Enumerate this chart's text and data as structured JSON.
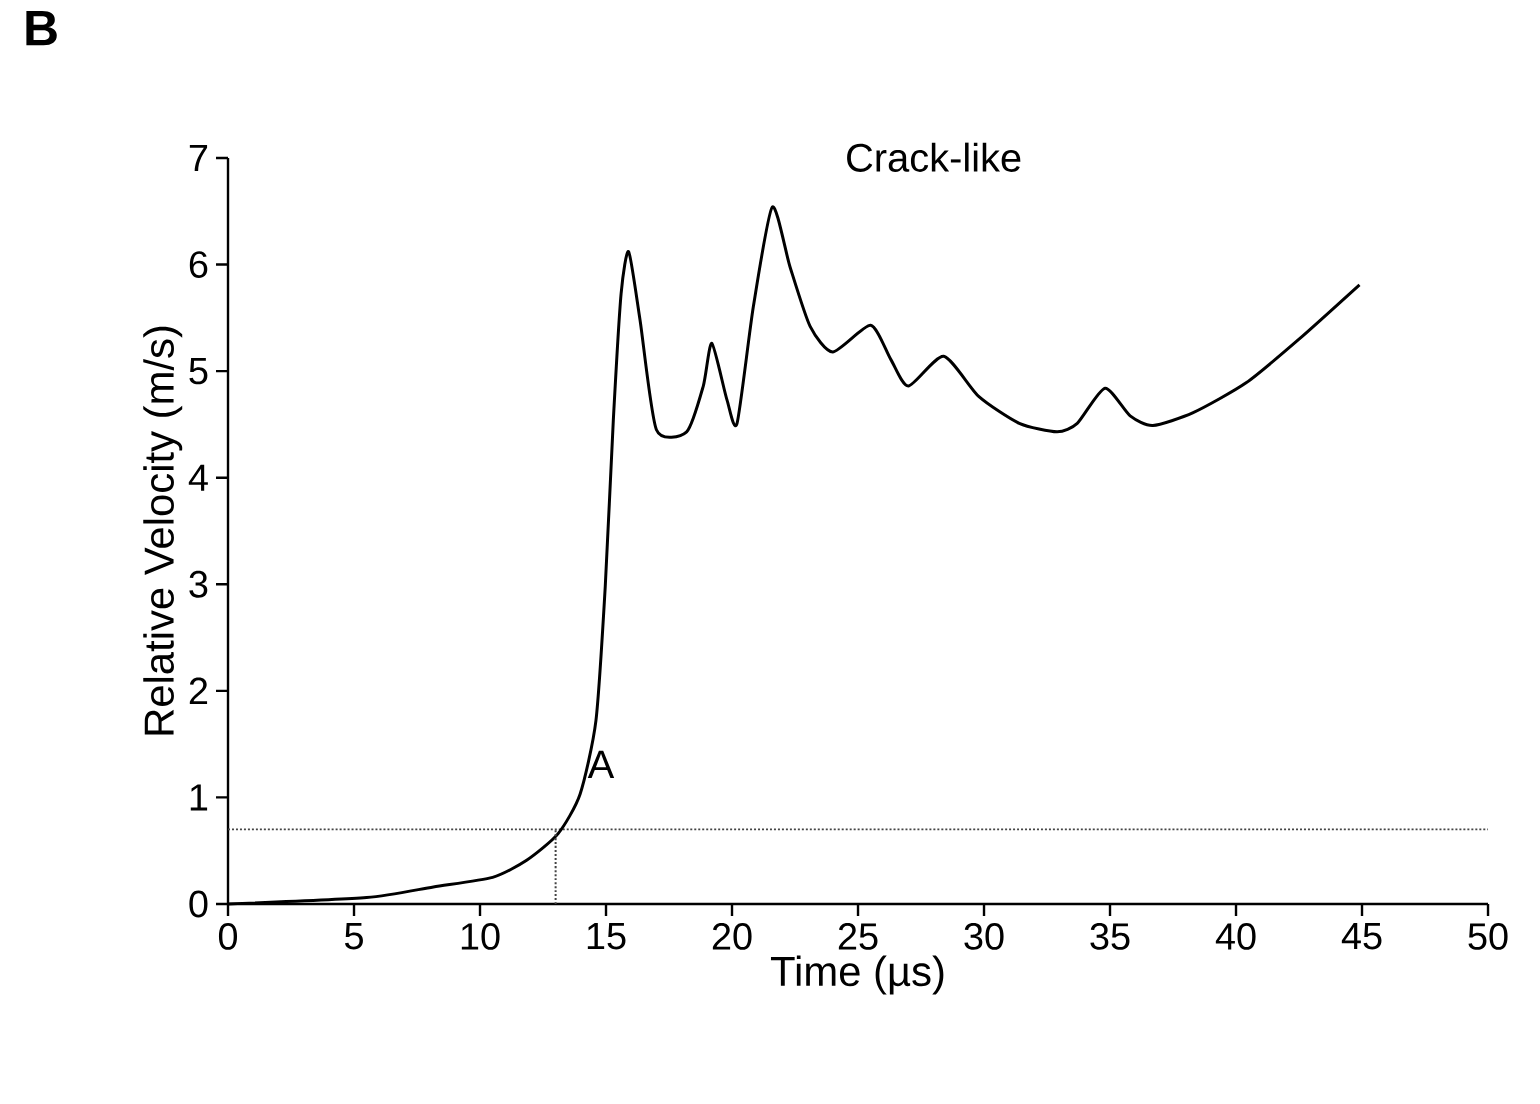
{
  "chart_data": {
    "type": "line",
    "title": "B",
    "xlabel": "Time (µs)",
    "ylabel": "Relative Velocity (m/s)",
    "xlim": [
      0,
      50
    ],
    "ylim": [
      0,
      7
    ],
    "xticks": [
      0,
      5,
      10,
      15,
      20,
      25,
      30,
      35,
      40,
      45,
      50
    ],
    "yticks": [
      0,
      1,
      2,
      3,
      4,
      5,
      6,
      7
    ],
    "grid": false,
    "marker": "none",
    "series": [
      {
        "color": "#000000",
        "line_style": "solid",
        "x": [
          0,
          5.5,
          8.15,
          10.5,
          11.85,
          13.1,
          13.97,
          14.6,
          14.97,
          15.29,
          15.6,
          15.9,
          16.35,
          17.0,
          18.2,
          18.86,
          19.2,
          19.8,
          20.2,
          20.85,
          21.6,
          22.3,
          23.1,
          24.0,
          25.5,
          26.3,
          27.0,
          28.4,
          29.8,
          31.4,
          32.9,
          33.7,
          34.8,
          35.8,
          36.7,
          38.3,
          40.4,
          42.5,
          44.9
        ],
        "values": [
          0,
          0.06,
          0.16,
          0.25,
          0.41,
          0.66,
          1.03,
          1.72,
          2.98,
          4.54,
          5.73,
          6.12,
          5.48,
          4.45,
          4.43,
          4.86,
          5.26,
          4.73,
          4.51,
          5.61,
          6.54,
          5.98,
          5.42,
          5.18,
          5.43,
          5.11,
          4.86,
          5.14,
          4.76,
          4.51,
          4.43,
          4.51,
          4.84,
          4.58,
          4.49,
          4.61,
          4.89,
          5.3,
          5.81
        ]
      },
      {
        "color": "#444444",
        "line_style": "dotted",
        "x": [
          13,
          13
        ],
        "values": [
          0,
          0.7
        ]
      }
    ],
    "ref_lines": [
      {
        "axis": "y",
        "value": 0.7,
        "color": "#444444",
        "line_style": "dotted"
      }
    ],
    "annotations": [
      "Crack-like",
      "A"
    ]
  }
}
